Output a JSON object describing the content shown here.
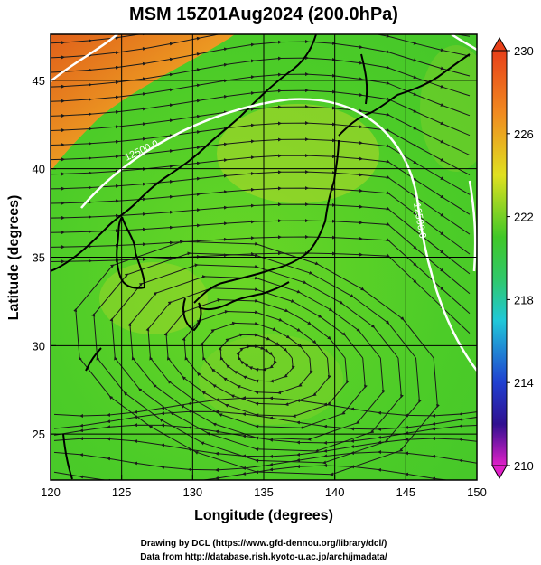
{
  "title": "MSM 15Z01Aug2024 (200.0hPa)",
  "x_axis": {
    "label": "Longitude (degrees)",
    "range": [
      120,
      150
    ],
    "ticks": [
      120,
      125,
      130,
      135,
      140,
      145,
      150
    ]
  },
  "y_axis": {
    "label": "Latitude  (degrees)",
    "range": [
      22.4,
      47.6
    ],
    "ticks": [
      25,
      30,
      35,
      40,
      45
    ]
  },
  "colorbar": {
    "range": [
      210,
      230
    ],
    "tick_labels": [
      "230",
      "226",
      "222",
      "218",
      "214",
      "210"
    ],
    "colors": {
      "top": "#e8401a",
      "orange": "#f08a20",
      "yellow": "#e8e020",
      "green": "#34c22a",
      "cyan": "#20c8d8",
      "blue": "#2040d0",
      "navy": "#301090",
      "magenta": "#e020c8"
    }
  },
  "contours": [
    {
      "label": "12500.0"
    }
  ],
  "field_colors": {
    "warm": "#e0761c",
    "yellowgreen": "#b4d72a",
    "green": "#4ccc28",
    "land_line": "#000000",
    "streamline": "#1a1a1a",
    "contour": "#ffffff",
    "grid": "#000000"
  },
  "credits": {
    "line1": "Drawing by DCL (https://www.gfd-dennou.org/library/dcl/)",
    "line2": "Data from http://database.rish.kyoto-u.ac.jp/arch/jmadata/"
  }
}
